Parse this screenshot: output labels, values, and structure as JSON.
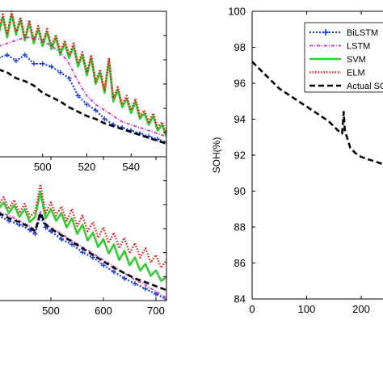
{
  "colors": {
    "bilstm": "#1f3fd6",
    "lstm": "#d23fd2",
    "svm": "#33cc33",
    "elm": "#e0201c",
    "actual": "#000000"
  },
  "chart_data": [
    {
      "type": "line",
      "panel": "top-left",
      "xlabel": "",
      "ylabel": "",
      "x_ticks": [
        "500",
        "520",
        "540"
      ],
      "x_ticks_values": [
        500,
        520,
        540
      ],
      "xlim": [
        480,
        556
      ],
      "ylim": [
        91.4,
        96.4
      ],
      "grid": false,
      "series": [
        {
          "key": "actual",
          "x": [
            480,
            484,
            488,
            492,
            496,
            500,
            504,
            508,
            512,
            516,
            520,
            524,
            528,
            532,
            536,
            540,
            544,
            548,
            552,
            556
          ],
          "y": [
            94.4,
            94.3,
            94.1,
            94.0,
            93.85,
            93.6,
            93.45,
            93.3,
            93.1,
            92.95,
            92.8,
            92.7,
            92.55,
            92.45,
            92.35,
            92.25,
            92.15,
            92.05,
            91.95,
            91.85
          ]
        },
        {
          "key": "bilstm",
          "x": [
            480,
            484,
            488,
            492,
            496,
            500,
            504,
            508,
            512,
            516,
            520,
            524,
            528,
            532,
            536,
            540,
            544,
            548,
            552,
            556
          ],
          "y": [
            94.8,
            94.9,
            94.7,
            94.9,
            94.6,
            94.6,
            94.5,
            94.3,
            94.1,
            93.5,
            93.2,
            93.0,
            92.7,
            92.5,
            92.4,
            92.3,
            92.2,
            92.1,
            92.0,
            91.9
          ]
        },
        {
          "key": "lstm",
          "x": [
            480,
            484,
            488,
            492,
            496,
            500,
            504,
            508,
            512,
            516,
            520,
            524,
            528,
            532,
            536,
            540,
            544,
            548,
            552,
            556
          ],
          "y": [
            95.2,
            95.3,
            95.4,
            95.5,
            95.5,
            95.4,
            95.2,
            95.0,
            94.6,
            94.0,
            93.5,
            93.2,
            93.0,
            92.8,
            92.6,
            92.5,
            92.4,
            92.3,
            92.2,
            92.1
          ]
        },
        {
          "key": "svm",
          "x": [
            480,
            482,
            484,
            486,
            488,
            490,
            492,
            494,
            496,
            498,
            500,
            502,
            504,
            506,
            508,
            510,
            512,
            514,
            516,
            518,
            520,
            522,
            524,
            526,
            528,
            530,
            532,
            534,
            536,
            538,
            540,
            542,
            544,
            546,
            548,
            550,
            552,
            554,
            556
          ],
          "y": [
            95.6,
            96.2,
            95.5,
            96.3,
            95.6,
            96.1,
            95.4,
            96.0,
            95.3,
            95.8,
            95.2,
            95.7,
            95.1,
            95.5,
            94.9,
            95.3,
            94.8,
            95.2,
            94.5,
            94.9,
            94.2,
            94.8,
            93.9,
            94.3,
            93.6,
            94.7,
            93.3,
            93.7,
            93.1,
            93.4,
            92.9,
            93.3,
            92.7,
            92.9,
            92.5,
            92.8,
            92.3,
            92.5,
            92.1
          ]
        },
        {
          "key": "elm",
          "x": [
            480,
            482,
            484,
            486,
            488,
            490,
            492,
            494,
            496,
            498,
            500,
            502,
            504,
            506,
            508,
            510,
            512,
            514,
            516,
            518,
            520,
            522,
            524,
            526,
            528,
            530,
            532,
            534,
            536,
            538,
            540,
            542,
            544,
            546,
            548,
            550,
            552,
            554,
            556
          ],
          "y": [
            95.7,
            96.3,
            95.6,
            96.4,
            95.7,
            96.2,
            95.5,
            96.1,
            95.4,
            95.9,
            95.3,
            95.8,
            95.2,
            95.6,
            95.0,
            95.4,
            94.9,
            95.3,
            94.6,
            95.0,
            94.3,
            94.9,
            94.0,
            94.4,
            93.7,
            94.8,
            93.4,
            93.8,
            93.2,
            93.5,
            93.0,
            93.4,
            92.8,
            93.0,
            92.6,
            92.9,
            92.4,
            92.6,
            92.2
          ]
        }
      ]
    },
    {
      "type": "line",
      "panel": "bottom-left",
      "xlabel": "",
      "ylabel": "",
      "x_ticks": [
        "500",
        "600",
        "700"
      ],
      "x_ticks_values": [
        500,
        600,
        700
      ],
      "xlim": [
        400,
        720
      ],
      "ylim": [
        84.5,
        95.5
      ],
      "grid": false,
      "series": [
        {
          "key": "actual",
          "x": [
            400,
            420,
            440,
            460,
            470,
            480,
            490,
            500,
            520,
            540,
            560,
            580,
            600,
            620,
            640,
            660,
            680,
            700,
            720
          ],
          "y": [
            91.2,
            90.8,
            90.5,
            90.1,
            89.8,
            91.2,
            90.3,
            90.0,
            89.5,
            89.0,
            88.5,
            88.0,
            87.5,
            87.0,
            86.6,
            86.2,
            85.9,
            85.6,
            85.3
          ]
        },
        {
          "key": "bilstm",
          "x": [
            400,
            420,
            440,
            460,
            470,
            480,
            490,
            500,
            520,
            540,
            560,
            580,
            600,
            620,
            640,
            660,
            680,
            700,
            720
          ],
          "y": [
            91.0,
            90.6,
            90.3,
            89.9,
            89.6,
            91.0,
            90.1,
            89.8,
            89.2,
            88.8,
            88.2,
            87.8,
            87.2,
            86.7,
            86.2,
            85.8,
            85.4,
            85.0,
            84.6
          ]
        },
        {
          "key": "lstm",
          "x": [
            400,
            420,
            440,
            460,
            470,
            480,
            490,
            500,
            520,
            540,
            560,
            580,
            600,
            620,
            640,
            660,
            680,
            700,
            720
          ],
          "y": [
            91.3,
            91.0,
            90.6,
            90.2,
            89.9,
            91.3,
            90.4,
            90.1,
            89.6,
            89.1,
            88.6,
            88.1,
            87.6,
            87.1,
            86.6,
            86.1,
            85.7,
            85.2,
            84.7
          ]
        },
        {
          "key": "svm",
          "x": [
            400,
            410,
            420,
            430,
            440,
            450,
            460,
            470,
            480,
            490,
            500,
            510,
            520,
            530,
            540,
            550,
            560,
            570,
            580,
            590,
            600,
            610,
            620,
            630,
            640,
            650,
            660,
            670,
            680,
            690,
            700,
            710,
            720
          ],
          "y": [
            91.5,
            92.0,
            91.2,
            91.8,
            90.9,
            91.5,
            90.5,
            90.9,
            92.8,
            90.8,
            91.5,
            90.6,
            91.2,
            90.1,
            90.8,
            89.6,
            90.3,
            89.1,
            89.7,
            88.6,
            89.2,
            88.1,
            88.8,
            87.6,
            88.3,
            87.2,
            87.8,
            86.8,
            87.3,
            86.4,
            86.8,
            86.0,
            86.3
          ]
        },
        {
          "key": "elm",
          "x": [
            400,
            410,
            420,
            430,
            440,
            450,
            460,
            470,
            480,
            490,
            500,
            510,
            520,
            530,
            540,
            550,
            560,
            570,
            580,
            590,
            600,
            610,
            620,
            630,
            640,
            650,
            660,
            670,
            680,
            690,
            700,
            710,
            720
          ],
          "y": [
            91.8,
            92.4,
            91.5,
            92.2,
            91.2,
            91.9,
            90.9,
            91.3,
            93.4,
            91.2,
            92.0,
            91.0,
            91.7,
            90.6,
            91.5,
            90.2,
            91.0,
            89.8,
            90.5,
            89.3,
            90.1,
            88.9,
            89.7,
            88.5,
            89.3,
            88.1,
            88.9,
            87.8,
            88.5,
            87.4,
            88.0,
            87.0,
            87.6
          ]
        }
      ]
    },
    {
      "type": "line",
      "panel": "right",
      "title": "",
      "xlabel": "",
      "ylabel": "SOH(%)",
      "x_ticks": [
        "0",
        "100",
        "200"
      ],
      "x_ticks_values": [
        0,
        100,
        200
      ],
      "y_ticks": [
        "84",
        "86",
        "88",
        "90",
        "92",
        "94",
        "96",
        "98",
        "100"
      ],
      "y_ticks_values": [
        84,
        86,
        88,
        90,
        92,
        94,
        96,
        98,
        100
      ],
      "xlim": [
        0,
        243
      ],
      "ylim": [
        84,
        100
      ],
      "grid": false,
      "legend": {
        "placement": "top-right",
        "entries": [
          {
            "key": "bilstm",
            "label": "BiLSTM"
          },
          {
            "key": "lstm",
            "label": "LSTM"
          },
          {
            "key": "svm",
            "label": "SVM"
          },
          {
            "key": "elm",
            "label": "ELM"
          },
          {
            "key": "actual",
            "label": "Actual SOH"
          }
        ]
      },
      "series": [
        {
          "key": "actual",
          "x": [
            0,
            10,
            20,
            30,
            40,
            50,
            60,
            70,
            80,
            90,
            100,
            110,
            120,
            130,
            140,
            150,
            160,
            165,
            168,
            170,
            175,
            180,
            190,
            200,
            210,
            220,
            230,
            240
          ],
          "y": [
            97.2,
            96.9,
            96.6,
            96.3,
            96.0,
            95.7,
            95.5,
            95.3,
            95.1,
            94.9,
            94.7,
            94.5,
            94.3,
            94.1,
            93.9,
            93.6,
            93.3,
            93.2,
            94.4,
            93.4,
            92.9,
            92.4,
            92.1,
            91.9,
            91.8,
            91.7,
            91.6,
            91.5
          ]
        }
      ]
    }
  ]
}
